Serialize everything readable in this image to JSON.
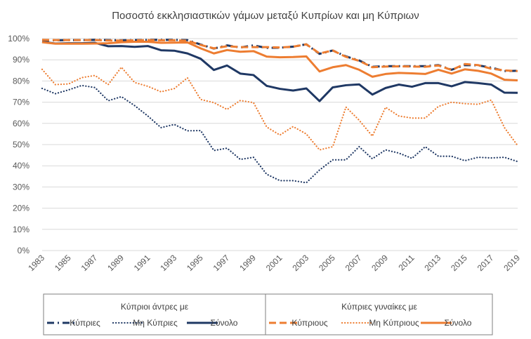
{
  "chart_data": {
    "type": "line",
    "title": "Ποσοστό εκκλησιαστικών γάμων μεταξύ Κυπρίων και μη Κύπριων",
    "xlabel": "",
    "ylabel": "",
    "x": [
      1983,
      1984,
      1985,
      1986,
      1987,
      1988,
      1989,
      1990,
      1991,
      1992,
      1993,
      1994,
      1995,
      1996,
      1997,
      1998,
      1999,
      2000,
      2001,
      2002,
      2003,
      2004,
      2005,
      2006,
      2007,
      2008,
      2009,
      2010,
      2011,
      2012,
      2013,
      2014,
      2015,
      2016,
      2017,
      2018,
      2019
    ],
    "x_tick_labels": [
      "1983",
      "1985",
      "1987",
      "1989",
      "1991",
      "1993",
      "1995",
      "1997",
      "1999",
      "2001",
      "2003",
      "2005",
      "2007",
      "2009",
      "2011",
      "2013",
      "2015",
      "2017",
      "2019"
    ],
    "ylim": [
      0,
      100
    ],
    "y_tick_labels": [
      "0%",
      "10%",
      "20%",
      "30%",
      "40%",
      "50%",
      "60%",
      "70%",
      "80%",
      "90%",
      "100%"
    ],
    "colors": {
      "navy": "#1F3864",
      "orange": "#ED7D31"
    },
    "legend": {
      "position": "bottom",
      "groups": [
        {
          "title": "Κύπριοι άντρες με",
          "entries": [
            "Κύπριες",
            "Μη Κύπριες",
            "Σύνολο"
          ]
        },
        {
          "title": "Κύπριες γυναίκες με",
          "entries": [
            "Κύπριους",
            "Μη Κύπριους",
            "Σύνολο"
          ]
        }
      ]
    },
    "series": [
      {
        "name": "Κύπριοι άντρες με Κύπριες",
        "color": "#1F3864",
        "style": "dashdot",
        "values": [
          99,
          99.2,
          99.3,
          99.3,
          99.4,
          99.3,
          99.2,
          99.3,
          99.4,
          99.4,
          99.4,
          99.3,
          97.2,
          95.3,
          96.8,
          95.8,
          96.8,
          95.6,
          95.7,
          96.2,
          97.3,
          92.8,
          94.4,
          91.6,
          89.7,
          86.7,
          87,
          87,
          87,
          87,
          87.5,
          85.3,
          87.5,
          87.4,
          86.3,
          84.7,
          84.8
        ]
      },
      {
        "name": "Κύπριοι άντρες με Μη Κύπριες",
        "color": "#1F3864",
        "style": "dotted",
        "values": [
          76.5,
          74,
          75.8,
          77.9,
          76.9,
          70.7,
          72.6,
          68.4,
          63.5,
          58,
          59.5,
          56.5,
          56.6,
          47.2,
          48.3,
          43,
          44,
          36,
          33,
          33,
          32,
          38,
          42.8,
          42.8,
          49,
          43.3,
          47.5,
          46,
          43.5,
          49,
          44.5,
          44.5,
          42.4,
          44,
          43.7,
          44,
          42
        ]
      },
      {
        "name": "Κύπριοι άντρες με Σύνολο",
        "color": "#1F3864",
        "style": "solid",
        "values": [
          98.5,
          97.7,
          97.8,
          97.8,
          98,
          96.4,
          96.5,
          96.1,
          96.5,
          94.5,
          94.3,
          93,
          90.5,
          85.2,
          87.3,
          83.5,
          82.8,
          77.7,
          76.3,
          75.5,
          76.5,
          70.5,
          77,
          78,
          78.4,
          73.6,
          76.7,
          78.3,
          77.3,
          79,
          79,
          77.5,
          79.5,
          79,
          78.3,
          74.5,
          74.4
        ]
      },
      {
        "name": "Κύπριες γυναίκες με Κύπριους",
        "color": "#ED7D31",
        "style": "dashed",
        "values": [
          99.4,
          99.3,
          99.3,
          99.3,
          99.3,
          99.1,
          99.1,
          99.2,
          99.3,
          99.2,
          99.2,
          99,
          97,
          95.4,
          96.4,
          96,
          96,
          96,
          95.8,
          96.2,
          97.3,
          93,
          94.4,
          91.4,
          89.5,
          86.5,
          86.8,
          86.9,
          86.8,
          86.7,
          87.3,
          85.2,
          88,
          87.5,
          85.8,
          85,
          84.7
        ]
      },
      {
        "name": "Κύπριες γυναίκες με Μη Κύπριους",
        "color": "#ED7D31",
        "style": "dotted",
        "values": [
          85.5,
          78.3,
          78.6,
          81.6,
          82.6,
          78.3,
          86.5,
          79.3,
          77.5,
          74.9,
          76.4,
          81.5,
          71.3,
          69.8,
          66.6,
          70.8,
          69.8,
          58.3,
          54.5,
          58.5,
          55,
          47.5,
          49,
          67.7,
          61.5,
          54,
          67.6,
          63.5,
          62.5,
          62.5,
          68,
          70,
          69.3,
          69,
          71,
          58,
          49.5
        ]
      },
      {
        "name": "Κύπριες γυναίκες με Σύνολο",
        "color": "#ED7D31",
        "style": "solid",
        "values": [
          98.3,
          97.6,
          97.6,
          97.6,
          97.7,
          97.8,
          98.3,
          98.5,
          98.5,
          98,
          98.1,
          98.2,
          95.4,
          93,
          94.6,
          93.8,
          94.1,
          91.5,
          91.2,
          91.3,
          91.6,
          84.5,
          86.5,
          87.5,
          85.3,
          82,
          83.3,
          83.8,
          83.6,
          83.3,
          85.3,
          83.5,
          85.5,
          84.8,
          83.5,
          80.6,
          80.3
        ]
      }
    ]
  }
}
